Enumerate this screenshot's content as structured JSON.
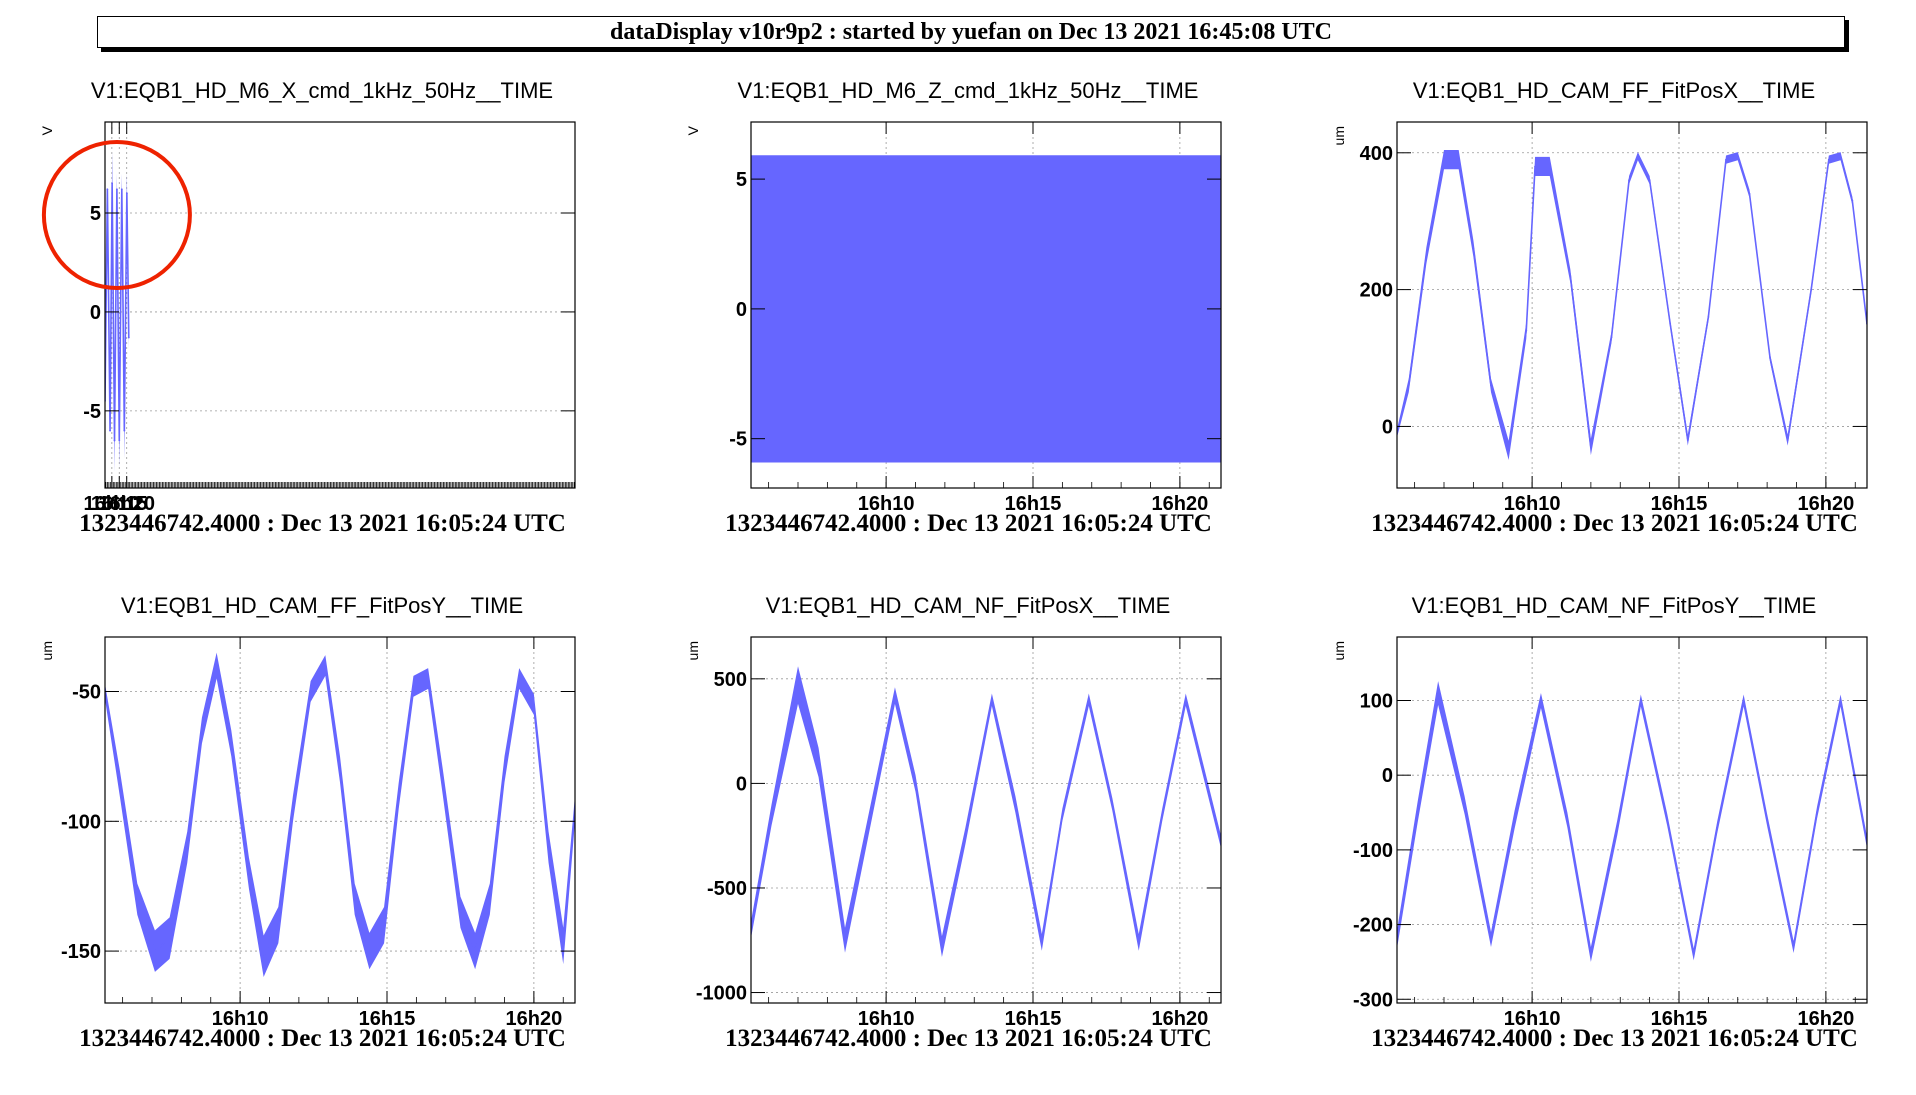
{
  "header": {
    "title": "dataDisplay v10r9p2 : started by yuefan on Dec 13 2021 16:45:08 UTC"
  },
  "colors": {
    "series": "#6666ff",
    "annotation": "#ee2200",
    "axis": "#000000",
    "grid": "#999999"
  },
  "chart_data": [
    {
      "type": "line",
      "title": "V1:EQB1_HD_M6_X_cmd_1kHz_50Hz__TIME",
      "ylabel": "V",
      "xlabel": "",
      "xlim": [
        965.4,
        1281.5
      ],
      "ylim": [
        -8.9,
        9.6
      ],
      "x_ticks": [
        {
          "value": 970,
          "label": "16h10"
        },
        {
          "value": 975,
          "label": "16h15"
        },
        {
          "value": 980,
          "label": "16h20"
        }
      ],
      "y_ticks": [
        {
          "value": 5,
          "label": "5"
        },
        {
          "value": 0,
          "label": "0"
        },
        {
          "value": -5,
          "label": "-5"
        }
      ],
      "grid": true,
      "footer": "1323446742.4000 : Dec 13 2021 16:05:24 UTC",
      "annotation": {
        "shape": "circle",
        "color": "#ee2200",
        "label": ""
      },
      "series": [
        {
          "x": [
            965.4,
            967.0,
            968.8,
            970.2,
            971.8,
            973.4,
            975.0,
            976.7,
            978.4,
            980.1,
            981.4
          ],
          "y": [
            -4.5,
            6.2,
            -6.0,
            6.5,
            -6.5,
            6.2,
            -6.5,
            6.2,
            -6.0,
            6.0,
            -1.3
          ]
        }
      ],
      "band": [
        0,
        0,
        0,
        1.6,
        1.6,
        0.8,
        1.4,
        0.8,
        1.4,
        1.0,
        0.6
      ]
    },
    {
      "type": "area",
      "title": "V1:EQB1_HD_M6_Z_cmd_1kHz_50Hz__TIME",
      "ylabel": "V",
      "xlabel": "",
      "xlim": [
        965.4,
        981.4
      ],
      "ylim": [
        -6.9,
        7.2
      ],
      "x_ticks": [
        {
          "value": 970,
          "label": "16h10"
        },
        {
          "value": 975,
          "label": "16h15"
        },
        {
          "value": 980,
          "label": "16h20"
        }
      ],
      "y_ticks": [
        {
          "value": 5,
          "label": "5"
        },
        {
          "value": 0,
          "label": "0"
        },
        {
          "value": -5,
          "label": "-5"
        }
      ],
      "grid": true,
      "footer": "1323446742.4000 : Dec 13 2021 16:05:24 UTC",
      "series": [
        {
          "x": [
            965.4,
            981.4
          ],
          "upper": [
            5.9,
            5.9
          ],
          "lower": [
            -5.9,
            -5.9
          ]
        }
      ]
    },
    {
      "type": "line",
      "title": "V1:EQB1_HD_CAM_FF_FitPosX__TIME",
      "ylabel": "um",
      "xlabel": "",
      "xlim": [
        965.4,
        981.4
      ],
      "ylim": [
        -90,
        445
      ],
      "x_ticks": [
        {
          "value": 970,
          "label": "16h10"
        },
        {
          "value": 975,
          "label": "16h15"
        },
        {
          "value": 980,
          "label": "16h20"
        }
      ],
      "y_ticks": [
        {
          "value": 400,
          "label": "400"
        },
        {
          "value": 200,
          "label": "200"
        },
        {
          "value": 0,
          "label": "0"
        }
      ],
      "grid": true,
      "footer": "1323446742.4000 : Dec 13 2021 16:05:24 UTC",
      "series": [
        {
          "x": [
            965.4,
            965.8,
            966.4,
            967.0,
            967.5,
            968.0,
            968.6,
            969.2,
            969.8,
            970.1,
            970.6,
            971.3,
            972.0,
            972.7,
            973.3,
            973.6,
            974.0,
            974.7,
            975.3,
            976.0,
            976.6,
            977.0,
            977.4,
            978.1,
            978.7,
            979.5,
            980.1,
            980.5,
            980.9,
            981.4
          ],
          "y": [
            -10,
            60,
            250,
            390,
            390,
            260,
            60,
            -35,
            140,
            380,
            380,
            220,
            -30,
            130,
            360,
            395,
            360,
            150,
            -20,
            160,
            390,
            395,
            340,
            100,
            -20,
            200,
            390,
            395,
            330,
            150
          ]
        }
      ],
      "band": [
        6,
        10,
        12,
        14,
        14,
        12,
        10,
        14,
        12,
        14,
        14,
        10,
        12,
        8,
        6,
        6,
        6,
        6,
        8,
        6,
        6,
        6,
        6,
        6,
        8,
        6,
        6,
        6,
        6,
        6
      ]
    },
    {
      "type": "line",
      "title": "V1:EQB1_HD_CAM_FF_FitPosY__TIME",
      "ylabel": "um",
      "xlabel": "",
      "xlim": [
        965.4,
        981.4
      ],
      "ylim": [
        -170,
        -29
      ],
      "x_ticks": [
        {
          "value": 970,
          "label": "16h10"
        },
        {
          "value": 975,
          "label": "16h15"
        },
        {
          "value": 980,
          "label": "16h20"
        }
      ],
      "y_ticks": [
        {
          "value": -50,
          "label": "-50"
        },
        {
          "value": -100,
          "label": "-100"
        },
        {
          "value": -150,
          "label": "-150"
        }
      ],
      "grid": true,
      "footer": "1323446742.4000 : Dec 13 2021 16:05:24 UTC",
      "series": [
        {
          "x": [
            965.4,
            965.9,
            966.5,
            967.1,
            967.6,
            968.2,
            968.7,
            969.2,
            969.7,
            970.3,
            970.8,
            971.3,
            971.8,
            972.4,
            972.9,
            973.4,
            973.9,
            974.4,
            974.9,
            975.4,
            975.9,
            976.4,
            976.9,
            977.5,
            978.0,
            978.5,
            979.0,
            979.5,
            980.0,
            980.5,
            981.0,
            981.4
          ],
          "y": [
            -50,
            -85,
            -130,
            -150,
            -145,
            -110,
            -65,
            -40,
            -70,
            -120,
            -152,
            -140,
            -95,
            -50,
            -40,
            -80,
            -130,
            -150,
            -140,
            -90,
            -48,
            -45,
            -85,
            -135,
            -150,
            -130,
            -80,
            -45,
            -55,
            -110,
            -148,
            -95
          ]
        }
      ],
      "band": [
        3,
        5,
        6,
        8,
        8,
        6,
        5,
        5,
        5,
        6,
        8,
        7,
        5,
        4,
        4,
        5,
        6,
        7,
        7,
        5,
        4,
        4,
        5,
        6,
        7,
        6,
        5,
        4,
        4,
        6,
        7,
        5
      ]
    },
    {
      "type": "line",
      "title": "V1:EQB1_HD_CAM_NF_FitPosX__TIME",
      "ylabel": "um",
      "xlabel": "",
      "xlim": [
        965.4,
        981.4
      ],
      "ylim": [
        -1050,
        700
      ],
      "x_ticks": [
        {
          "value": 970,
          "label": "16h10"
        },
        {
          "value": 975,
          "label": "16h15"
        },
        {
          "value": 980,
          "label": "16h20"
        }
      ],
      "y_ticks": [
        {
          "value": 500,
          "label": "500"
        },
        {
          "value": 0,
          "label": "0"
        },
        {
          "value": -500,
          "label": "-500"
        },
        {
          "value": -1000,
          "label": "-1000"
        }
      ],
      "grid": true,
      "footer": "1323446742.4000 : Dec 13 2021 16:05:24 UTC",
      "series": [
        {
          "x": [
            965.4,
            966.1,
            967.0,
            967.7,
            968.6,
            969.4,
            970.3,
            971.0,
            971.9,
            972.7,
            973.6,
            974.4,
            975.3,
            976.0,
            976.9,
            977.7,
            978.6,
            979.4,
            980.2,
            981.4
          ],
          "y": [
            -700,
            -150,
            470,
            100,
            -750,
            -200,
            420,
            0,
            -780,
            -250,
            400,
            -100,
            -760,
            -150,
            400,
            -100,
            -760,
            -150,
            400,
            -280
          ]
        }
      ],
      "band": [
        40,
        50,
        90,
        70,
        60,
        50,
        40,
        40,
        50,
        40,
        30,
        40,
        40,
        30,
        30,
        30,
        40,
        30,
        30,
        30
      ]
    },
    {
      "type": "line",
      "title": "V1:EQB1_HD_CAM_NF_FitPosY__TIME",
      "ylabel": "um",
      "xlabel": "",
      "xlim": [
        965.4,
        981.4
      ],
      "ylim": [
        -305,
        185
      ],
      "x_ticks": [
        {
          "value": 970,
          "label": "16h10"
        },
        {
          "value": 975,
          "label": "16h15"
        },
        {
          "value": 980,
          "label": "16h20"
        }
      ],
      "y_ticks": [
        {
          "value": 100,
          "label": "100"
        },
        {
          "value": 0,
          "label": "0"
        },
        {
          "value": -100,
          "label": "-100"
        },
        {
          "value": -200,
          "label": "-200"
        },
        {
          "value": -300,
          "label": "-300"
        }
      ],
      "grid": true,
      "footer": "1323446742.4000 : Dec 13 2021 16:05:24 UTC",
      "series": [
        {
          "x": [
            965.4,
            966.1,
            966.8,
            967.7,
            968.6,
            969.4,
            970.3,
            971.2,
            972.0,
            972.9,
            973.7,
            974.6,
            975.5,
            976.3,
            977.2,
            978.0,
            978.9,
            979.7,
            980.5,
            981.4
          ],
          "y": [
            -220,
            -50,
            110,
            -40,
            -220,
            -60,
            100,
            -60,
            -240,
            -70,
            100,
            -60,
            -240,
            -70,
            100,
            -60,
            -230,
            -50,
            100,
            -90
          ]
        }
      ],
      "band": [
        12,
        14,
        16,
        12,
        10,
        12,
        10,
        10,
        10,
        10,
        8,
        8,
        8,
        8,
        8,
        8,
        8,
        8,
        8,
        8
      ]
    }
  ]
}
